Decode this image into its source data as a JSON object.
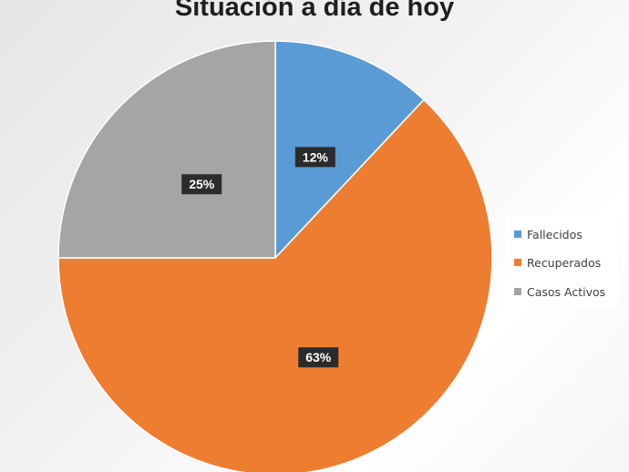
{
  "chart_data": {
    "type": "pie",
    "title": "Situación a día de hoy",
    "categories": [
      "Fallecidos",
      "Recuperados",
      "Casos Activos"
    ],
    "values": [
      12,
      63,
      25
    ],
    "labels": [
      "12%",
      "63%",
      "25%"
    ],
    "colors": [
      "#5b9bd5",
      "#ed7d31",
      "#a5a5a5"
    ],
    "start_angle_deg": 0,
    "direction": "clockwise",
    "legend_position": "right"
  }
}
